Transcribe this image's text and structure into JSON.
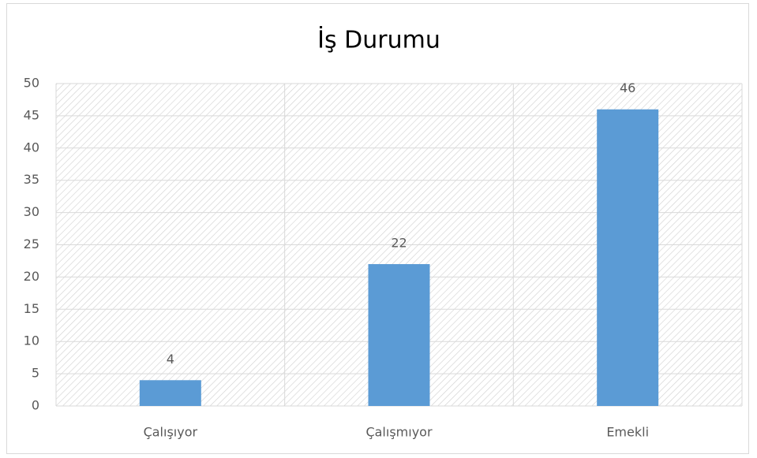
{
  "chart_data": {
    "type": "bar",
    "title": "İş Durumu",
    "categories": [
      "Çalışıyor",
      "Çalışmıyor",
      "Emekli"
    ],
    "values": [
      4,
      22,
      46
    ],
    "color": "#5b9bd5",
    "ylim": [
      0,
      50
    ],
    "yticks": [
      0,
      5,
      10,
      15,
      20,
      25,
      30,
      35,
      40,
      45,
      50
    ],
    "grid": true
  }
}
